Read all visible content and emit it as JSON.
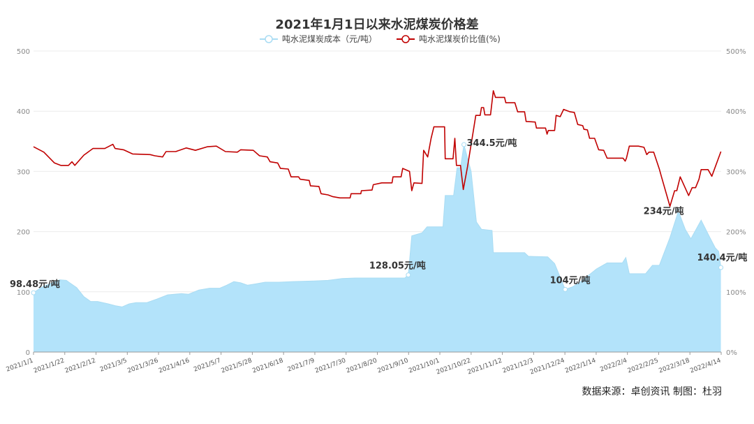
{
  "chart_data": {
    "type": "area+line",
    "title": "2021年1月1日以来水泥煤炭价格差",
    "categories": [
      "2021/1/1",
      "2021/1/22",
      "2021/2/12",
      "2021/3/5",
      "2021/3/26",
      "2021/4/16",
      "2021/5/7",
      "2021/5/28",
      "2021/6/18",
      "2021/7/9",
      "2021/7/30",
      "2021/8/20",
      "2021/9/10",
      "2021/10/1",
      "2021/10/22",
      "2021/11/12",
      "2021/12/3",
      "2021/12/24",
      "2022/1/14",
      "2022/2/4",
      "2022/2/25",
      "2022/3/18",
      "2022/4/14"
    ],
    "left_axis": {
      "ylim": [
        0,
        500
      ],
      "ticks": [
        "0",
        "100",
        "200",
        "300",
        "400",
        "500"
      ]
    },
    "right_axis": {
      "ylim": [
        0,
        500
      ],
      "ticks": [
        "0%",
        "100%",
        "200%",
        "300%",
        "400%",
        "500%"
      ]
    },
    "grid": true,
    "legend_position": "top-center",
    "series": [
      {
        "name": "吨水泥煤炭成本（元/吨）",
        "axis": "left",
        "style": "area",
        "color": "#a9dcf3",
        "fill": "#b3e3fa",
        "points": [
          [
            0,
            98.48
          ],
          [
            0.27,
            108
          ],
          [
            0.83,
            120
          ],
          [
            1.05,
            119
          ],
          [
            1.16,
            115
          ],
          [
            1.38,
            107
          ],
          [
            1.61,
            92
          ],
          [
            1.83,
            84
          ],
          [
            2.05,
            84
          ],
          [
            2.39,
            80
          ],
          [
            2.61,
            77
          ],
          [
            2.83,
            75
          ],
          [
            3.06,
            80
          ],
          [
            3.28,
            82
          ],
          [
            3.62,
            82
          ],
          [
            3.95,
            88
          ],
          [
            4.29,
            95
          ],
          [
            4.73,
            97
          ],
          [
            4.96,
            96
          ],
          [
            5.29,
            103
          ],
          [
            5.63,
            106
          ],
          [
            5.96,
            106
          ],
          [
            6.18,
            111
          ],
          [
            6.41,
            117
          ],
          [
            6.63,
            115
          ],
          [
            6.85,
            111
          ],
          [
            7.08,
            113
          ],
          [
            7.41,
            116
          ],
          [
            7.86,
            116
          ],
          [
            8.3,
            117
          ],
          [
            8.97,
            118
          ],
          [
            9.42,
            119
          ],
          [
            9.87,
            122
          ],
          [
            10.31,
            123
          ],
          [
            11.88,
            123
          ],
          [
            11.99,
            128.05
          ],
          [
            12.1,
            193
          ],
          [
            12.43,
            198
          ],
          [
            12.59,
            208
          ],
          [
            13.1,
            208
          ],
          [
            13.17,
            260
          ],
          [
            13.44,
            260
          ],
          [
            13.55,
            306
          ],
          [
            13.66,
            306
          ],
          [
            13.77,
            344.5
          ],
          [
            14.0,
            300
          ],
          [
            14.17,
            216
          ],
          [
            14.33,
            204
          ],
          [
            14.67,
            202
          ],
          [
            14.71,
            165
          ],
          [
            15.71,
            165
          ],
          [
            15.83,
            159
          ],
          [
            16.45,
            158
          ],
          [
            16.67,
            147
          ],
          [
            17.01,
            104
          ],
          [
            17.23,
            108
          ],
          [
            17.46,
            115
          ],
          [
            18.01,
            138
          ],
          [
            18.35,
            148
          ],
          [
            18.84,
            148
          ],
          [
            18.95,
            157
          ],
          [
            19.06,
            130
          ],
          [
            19.58,
            130
          ],
          [
            19.8,
            144
          ],
          [
            20.02,
            144
          ],
          [
            20.36,
            190
          ],
          [
            20.63,
            234
          ],
          [
            20.85,
            204
          ],
          [
            21.03,
            188
          ],
          [
            21.36,
            219
          ],
          [
            21.58,
            196
          ],
          [
            21.81,
            173
          ],
          [
            21.92,
            167
          ],
          [
            21.99,
            140.4
          ]
        ]
      },
      {
        "name": "吨水泥煤炭价比值(%)",
        "axis": "right",
        "style": "line",
        "color": "#c00000",
        "points": [
          [
            0,
            341
          ],
          [
            0.33,
            332
          ],
          [
            0.67,
            314
          ],
          [
            0.87,
            310
          ],
          [
            1.12,
            310
          ],
          [
            1.23,
            316
          ],
          [
            1.32,
            310
          ],
          [
            1.61,
            327
          ],
          [
            1.9,
            338
          ],
          [
            2.28,
            338
          ],
          [
            2.54,
            345
          ],
          [
            2.61,
            338
          ],
          [
            2.88,
            336
          ],
          [
            3.17,
            329
          ],
          [
            3.73,
            328
          ],
          [
            3.88,
            326
          ],
          [
            4.13,
            324
          ],
          [
            4.24,
            333
          ],
          [
            4.55,
            333
          ],
          [
            4.89,
            339
          ],
          [
            5.18,
            335
          ],
          [
            5.56,
            341
          ],
          [
            5.85,
            342
          ],
          [
            6.14,
            333
          ],
          [
            6.52,
            332
          ],
          [
            6.63,
            336
          ],
          [
            7.03,
            335
          ],
          [
            7.23,
            326
          ],
          [
            7.48,
            324
          ],
          [
            7.57,
            316
          ],
          [
            7.81,
            314
          ],
          [
            7.9,
            305
          ],
          [
            8.15,
            304
          ],
          [
            8.24,
            291
          ],
          [
            8.48,
            291
          ],
          [
            8.53,
            287
          ],
          [
            8.82,
            285
          ],
          [
            8.86,
            276
          ],
          [
            9.13,
            275
          ],
          [
            9.2,
            263
          ],
          [
            9.42,
            261
          ],
          [
            9.58,
            258
          ],
          [
            9.8,
            256
          ],
          [
            10.13,
            256
          ],
          [
            10.16,
            263
          ],
          [
            10.47,
            263
          ],
          [
            10.49,
            268
          ],
          [
            10.83,
            269
          ],
          [
            10.87,
            278
          ],
          [
            11.14,
            281
          ],
          [
            11.47,
            281
          ],
          [
            11.5,
            291
          ],
          [
            11.76,
            291
          ],
          [
            11.81,
            305
          ],
          [
            12.03,
            300
          ],
          [
            12.1,
            268
          ],
          [
            12.17,
            281
          ],
          [
            12.43,
            280
          ],
          [
            12.48,
            335
          ],
          [
            12.61,
            324
          ],
          [
            12.72,
            355
          ],
          [
            12.81,
            374
          ],
          [
            13.15,
            374
          ],
          [
            13.17,
            321
          ],
          [
            13.42,
            321
          ],
          [
            13.48,
            355
          ],
          [
            13.53,
            310
          ],
          [
            13.66,
            310
          ],
          [
            13.75,
            270
          ],
          [
            13.88,
            306
          ],
          [
            14.06,
            364
          ],
          [
            14.15,
            393
          ],
          [
            14.29,
            393
          ],
          [
            14.33,
            406
          ],
          [
            14.4,
            406
          ],
          [
            14.44,
            394
          ],
          [
            14.62,
            394
          ],
          [
            14.71,
            434
          ],
          [
            14.78,
            423
          ],
          [
            15.07,
            423
          ],
          [
            15.11,
            414
          ],
          [
            15.4,
            414
          ],
          [
            15.49,
            399
          ],
          [
            15.71,
            399
          ],
          [
            15.76,
            383
          ],
          [
            16.05,
            382
          ],
          [
            16.09,
            372
          ],
          [
            16.38,
            372
          ],
          [
            16.43,
            362
          ],
          [
            16.47,
            368
          ],
          [
            16.67,
            368
          ],
          [
            16.72,
            393
          ],
          [
            16.85,
            391
          ],
          [
            16.96,
            403
          ],
          [
            17.17,
            399
          ],
          [
            17.3,
            398
          ],
          [
            17.41,
            378
          ],
          [
            17.57,
            376
          ],
          [
            17.61,
            370
          ],
          [
            17.72,
            369
          ],
          [
            17.79,
            355
          ],
          [
            17.95,
            355
          ],
          [
            18.08,
            336
          ],
          [
            18.24,
            335
          ],
          [
            18.35,
            322
          ],
          [
            18.86,
            322
          ],
          [
            18.93,
            317
          ],
          [
            18.97,
            322
          ],
          [
            19.06,
            342
          ],
          [
            19.35,
            342
          ],
          [
            19.53,
            340
          ],
          [
            19.62,
            328
          ],
          [
            19.69,
            332
          ],
          [
            19.84,
            332
          ],
          [
            20.02,
            304
          ],
          [
            20.09,
            291
          ],
          [
            20.36,
            242
          ],
          [
            20.51,
            268
          ],
          [
            20.58,
            268
          ],
          [
            20.69,
            291
          ],
          [
            20.96,
            260
          ],
          [
            21.07,
            273
          ],
          [
            21.18,
            273
          ],
          [
            21.29,
            287
          ],
          [
            21.36,
            303
          ],
          [
            21.58,
            303
          ],
          [
            21.7,
            292
          ],
          [
            21.99,
            333
          ]
        ]
      }
    ],
    "annotations": [
      {
        "text": "98.48元/吨",
        "x": 0,
        "y": 98.48
      },
      {
        "text": "128.05元/吨",
        "x": 11.99,
        "y": 128.05
      },
      {
        "text": "344.5元/吨",
        "x": 13.77,
        "y": 344.5
      },
      {
        "text": "104元/吨",
        "x": 17.01,
        "y": 104
      },
      {
        "text": "234元/吨",
        "x": 20.63,
        "y": 234
      },
      {
        "text": "140.4元/吨",
        "x": 21.99,
        "y": 140.4
      }
    ]
  },
  "source": "数据来源：卓创资讯 制图：杜羽"
}
